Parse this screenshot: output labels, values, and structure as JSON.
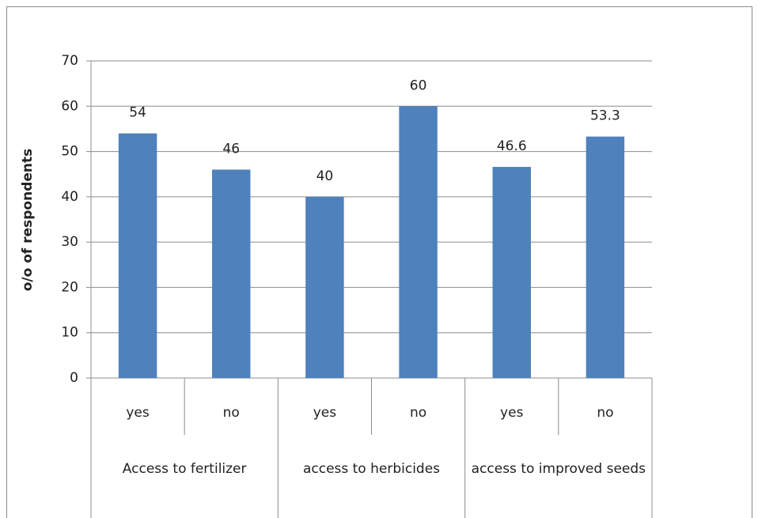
{
  "chart_data": {
    "type": "bar",
    "y_axis_label": "o/o of respondents",
    "categories": [
      "yes",
      "no",
      "yes",
      "no",
      "yes",
      "no"
    ],
    "groups": [
      "Access to fertilizer",
      "access to herbicides",
      "access to improved seeds"
    ],
    "values": [
      54,
      46,
      40,
      60,
      46.6,
      53.3
    ],
    "color": "#4f81bd",
    "ylim": [
      0,
      70
    ],
    "yticks": [
      0,
      10,
      20,
      30,
      40,
      50,
      60,
      70
    ],
    "grid": true
  }
}
